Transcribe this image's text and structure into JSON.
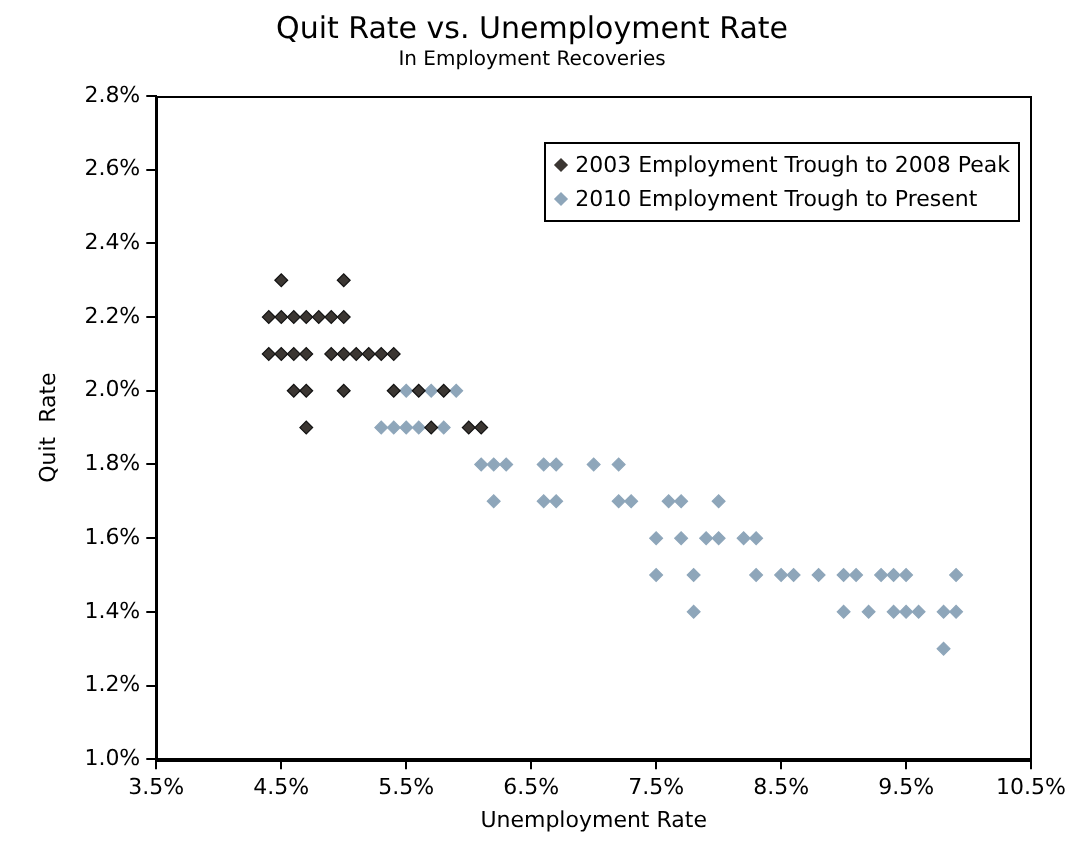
{
  "chart_data": {
    "type": "scatter",
    "title": "Quit Rate vs. Unemployment Rate",
    "subtitle": "In Employment Recoveries",
    "xlabel": "Unemployment Rate",
    "ylabel": "Quit  Rate",
    "xlim": [
      3.5,
      10.5
    ],
    "xticks": [
      {
        "value": 3.5,
        "label": "3.5%"
      },
      {
        "value": 4.5,
        "label": "4.5%"
      },
      {
        "value": 5.5,
        "label": "5.5%"
      },
      {
        "value": 6.5,
        "label": "6.5%"
      },
      {
        "value": 7.5,
        "label": "7.5%"
      },
      {
        "value": 8.5,
        "label": "8.5%"
      },
      {
        "value": 9.5,
        "label": "9.5%"
      },
      {
        "value": 10.5,
        "label": "10.5%"
      }
    ],
    "ylim": [
      1.0,
      2.8
    ],
    "yticks": [
      {
        "value": 1.0,
        "label": "1.0%"
      },
      {
        "value": 1.2,
        "label": "1.2%"
      },
      {
        "value": 1.4,
        "label": "1.4%"
      },
      {
        "value": 1.6,
        "label": "1.6%"
      },
      {
        "value": 1.8,
        "label": "1.8%"
      },
      {
        "value": 2.0,
        "label": "2.0%"
      },
      {
        "value": 2.2,
        "label": "2.2%"
      },
      {
        "value": 2.4,
        "label": "2.4%"
      },
      {
        "value": 2.6,
        "label": "2.6%"
      },
      {
        "value": 2.8,
        "label": "2.8%"
      }
    ],
    "grid": false,
    "legend": "top right",
    "marker": "diamond",
    "series": [
      {
        "name": "2003 Employment Trough to 2008 Peak",
        "color": "#3b3632",
        "x": [
          4.5,
          5.0,
          4.4,
          4.5,
          4.6,
          4.7,
          4.8,
          4.9,
          5.0,
          4.4,
          4.5,
          4.6,
          4.7,
          4.9,
          5.0,
          5.1,
          5.2,
          5.3,
          5.4,
          4.6,
          4.7,
          5.0,
          5.4,
          5.6,
          5.8,
          4.7,
          5.7,
          6.0,
          6.1
        ],
        "values": [
          2.3,
          2.3,
          2.2,
          2.2,
          2.2,
          2.2,
          2.2,
          2.2,
          2.2,
          2.1,
          2.1,
          2.1,
          2.1,
          2.1,
          2.1,
          2.1,
          2.1,
          2.1,
          2.1,
          2.0,
          2.0,
          2.0,
          2.0,
          2.0,
          2.0,
          1.9,
          1.9,
          1.9,
          1.9
        ]
      },
      {
        "name": "2010 Employment Trough to Present",
        "color": "#8ea6ba",
        "x": [
          5.5,
          5.7,
          5.9,
          5.3,
          5.4,
          5.5,
          5.6,
          5.8,
          6.1,
          6.2,
          6.3,
          6.6,
          6.7,
          7.0,
          7.2,
          6.2,
          6.6,
          6.7,
          7.2,
          7.3,
          7.6,
          7.7,
          8.0,
          7.5,
          7.7,
          7.9,
          8.0,
          8.2,
          8.3,
          7.5,
          7.8,
          8.3,
          8.5,
          8.6,
          8.8,
          9.0,
          9.1,
          9.3,
          9.4,
          9.5,
          9.9,
          7.8,
          9.0,
          9.2,
          9.4,
          9.5,
          9.6,
          9.8,
          9.9,
          9.8
        ],
        "values": [
          2.0,
          2.0,
          2.0,
          1.9,
          1.9,
          1.9,
          1.9,
          1.9,
          1.8,
          1.8,
          1.8,
          1.8,
          1.8,
          1.8,
          1.8,
          1.7,
          1.7,
          1.7,
          1.7,
          1.7,
          1.7,
          1.7,
          1.7,
          1.6,
          1.6,
          1.6,
          1.6,
          1.6,
          1.6,
          1.5,
          1.5,
          1.5,
          1.5,
          1.5,
          1.5,
          1.5,
          1.5,
          1.5,
          1.5,
          1.5,
          1.5,
          1.4,
          1.4,
          1.4,
          1.4,
          1.4,
          1.4,
          1.4,
          1.4,
          1.3
        ]
      }
    ]
  }
}
